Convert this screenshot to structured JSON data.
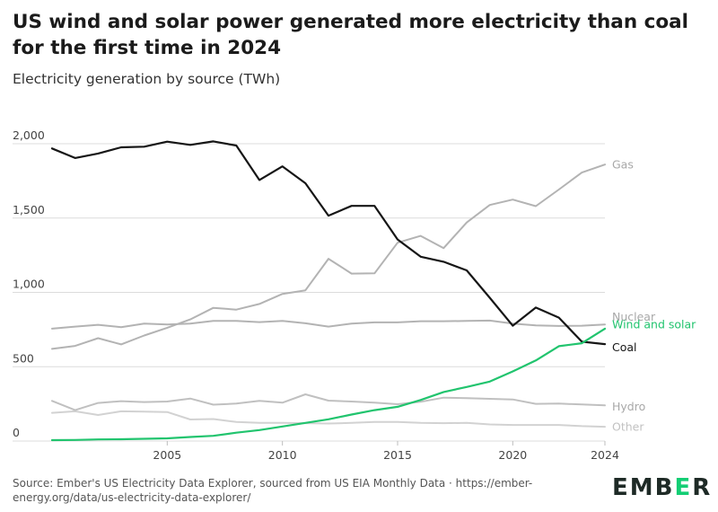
{
  "header": {
    "title": "US wind and solar power generated more electricity than coal for the first time in 2024",
    "subtitle": "Electricity generation by source (TWh)"
  },
  "footer": {
    "source": "Source: Ember's US Electricity Data Explorer, sourced from US EIA Monthly Data · https://ember-energy.org/data/us-electricity-data-explorer/",
    "logo": "EMBER"
  },
  "chart_data": {
    "type": "line",
    "title": "US wind and solar power generated more electricity than coal for the first time in 2024",
    "subtitle": "Electricity generation by source (TWh)",
    "x": [
      2000,
      2001,
      2002,
      2003,
      2004,
      2005,
      2006,
      2007,
      2008,
      2009,
      2010,
      2011,
      2012,
      2013,
      2014,
      2015,
      2016,
      2017,
      2018,
      2019,
      2020,
      2021,
      2022,
      2023,
      2024
    ],
    "xlim": [
      2000,
      2024
    ],
    "ylim": [
      0,
      2000
    ],
    "x_ticks": [
      2005,
      2010,
      2015,
      2020,
      2024
    ],
    "x_tick_labels": [
      "2005",
      "2010",
      "2015",
      "2020",
      "2024"
    ],
    "y_ticks": [
      0,
      500,
      1000,
      1500,
      2000
    ],
    "y_tick_labels": [
      "0",
      "500",
      "1,000",
      "1,500",
      "2,000"
    ],
    "grid": "horizontal",
    "legend": "series labels at right end of lines",
    "series": [
      {
        "name": "Other",
        "color": "#d2d2d2",
        "values": [
          190,
          200,
          175,
          200,
          198,
          195,
          145,
          148,
          128,
          122,
          122,
          120,
          118,
          122,
          128,
          128,
          122,
          120,
          122,
          112,
          108,
          108,
          108,
          100,
          96
        ]
      },
      {
        "name": "Hydro",
        "color": "#c0c0c0",
        "values": [
          270,
          208,
          256,
          268,
          262,
          266,
          286,
          245,
          252,
          270,
          258,
          314,
          272,
          266,
          258,
          248,
          264,
          292,
          288,
          284,
          280,
          250,
          252,
          246,
          240
        ]
      },
      {
        "name": "Gas",
        "color": "#b3b3b3",
        "values": [
          620,
          640,
          692,
          650,
          710,
          762,
          818,
          896,
          884,
          922,
          990,
          1014,
          1226,
          1126,
          1128,
          1334,
          1380,
          1298,
          1470,
          1588,
          1624,
          1580,
          1692,
          1806,
          1860
        ]
      },
      {
        "name": "Nuclear",
        "color": "#b3b3b3",
        "values": [
          756,
          770,
          782,
          766,
          790,
          784,
          790,
          808,
          808,
          800,
          808,
          792,
          770,
          790,
          798,
          798,
          806,
          806,
          808,
          810,
          790,
          778,
          774,
          776,
          784
        ]
      },
      {
        "name": "Coal",
        "color": "#161616",
        "values": [
          1968,
          1904,
          1934,
          1976,
          1980,
          2014,
          1992,
          2016,
          1988,
          1756,
          1848,
          1734,
          1516,
          1582,
          1582,
          1356,
          1240,
          1206,
          1148,
          964,
          776,
          898,
          830,
          668,
          652
        ]
      },
      {
        "name": "Wind and solar",
        "color": "#21c46e",
        "values": [
          6,
          7,
          11,
          12,
          15,
          18,
          27,
          35,
          56,
          74,
          98,
          122,
          146,
          178,
          208,
          230,
          276,
          330,
          364,
          400,
          468,
          542,
          638,
          658,
          756
        ]
      }
    ],
    "end_labels": [
      {
        "series": "Gas",
        "y": 1860
      },
      {
        "series": "Nuclear",
        "y": 836
      },
      {
        "series": "Wind and solar",
        "y": 784
      },
      {
        "series": "Coal",
        "y": 632
      },
      {
        "series": "Hydro",
        "y": 232
      },
      {
        "series": "Other",
        "y": 96
      }
    ],
    "colors": {
      "grid": "#dcdcdc",
      "axis_text": "#444444",
      "gridline_baseline": "#cfcfcf"
    }
  }
}
